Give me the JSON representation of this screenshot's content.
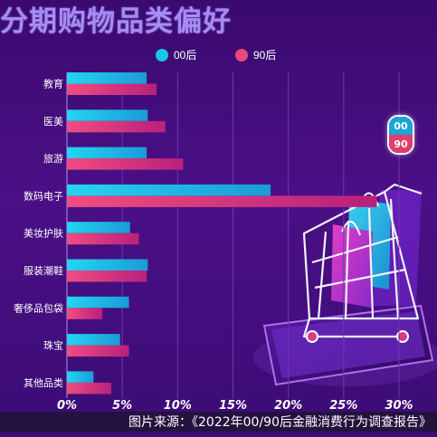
{
  "chart_data": {
    "type": "bar",
    "orientation": "horizontal",
    "title": "分期购物品类偏好",
    "categories": [
      "教育",
      "医美",
      "旅游",
      "数码电子",
      "美妆护肤",
      "服装潮鞋",
      "奢侈品包袋",
      "珠宝",
      "其他品类"
    ],
    "series": [
      {
        "name": "00后",
        "color": "#19c6e6",
        "values": [
          7.2,
          7.3,
          7.2,
          18.4,
          5.7,
          7.3,
          5.6,
          4.8,
          2.4
        ]
      },
      {
        "name": "90后",
        "color": "#e8497a",
        "values": [
          8.1,
          8.9,
          10.5,
          28.0,
          6.5,
          7.2,
          3.2,
          5.6,
          4.0
        ]
      }
    ],
    "xlim": [
      0,
      30
    ],
    "xticks": [
      "0%",
      "5%",
      "10%",
      "15%",
      "20%",
      "25%",
      "30%"
    ],
    "xlabel": "",
    "ylabel": "",
    "grid": "vertical",
    "legend": "top"
  },
  "badge": {
    "top": "00",
    "bottom": "90"
  },
  "caption": "图片来源：《2022年00/90后金融消费行为调查报告》"
}
